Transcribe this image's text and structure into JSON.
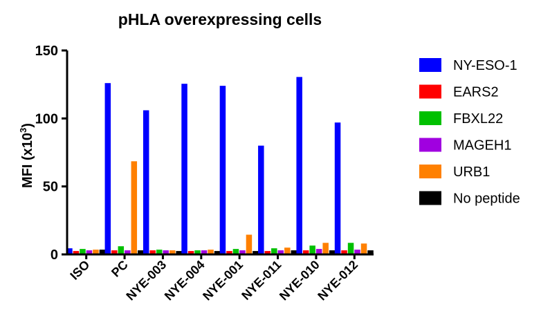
{
  "chart_data": {
    "type": "bar",
    "title": "pHLA overexpressing cells",
    "ylabel": "MFI (x10",
    "ylabel_sup": "3",
    "ylabel_close": ")",
    "xlabel": "",
    "ylim": [
      0,
      150
    ],
    "yticks": [
      0,
      50,
      100,
      150
    ],
    "categories": [
      "ISO",
      "PC",
      "NYE-003",
      "NYE-004",
      "NYE-001",
      "NYE-011",
      "NYE-010",
      "NYE-012"
    ],
    "series": [
      {
        "name": "NY-ESO-1",
        "color": "#0000ff",
        "values": [
          4.5,
          126,
          106,
          125.5,
          124,
          80,
          130.5,
          97
        ]
      },
      {
        "name": "EARS2",
        "color": "#ff0000",
        "values": [
          2.5,
          3,
          3,
          2.5,
          2.5,
          2.5,
          3,
          3
        ]
      },
      {
        "name": "FBXL22",
        "color": "#00c000",
        "values": [
          4,
          6,
          3.5,
          3,
          4,
          4.5,
          6.5,
          8.5
        ]
      },
      {
        "name": "MAGEH1",
        "color": "#a000e0",
        "values": [
          3,
          3,
          3,
          3,
          3,
          3,
          4,
          3.5
        ]
      },
      {
        "name": "URB1",
        "color": "#ff8000",
        "values": [
          3.5,
          68.5,
          3,
          3.5,
          14.5,
          5,
          8.5,
          8
        ]
      },
      {
        "name": "No peptide",
        "color": "#000000",
        "values": [
          3.5,
          3,
          2.5,
          2.5,
          2.5,
          3,
          3,
          3
        ]
      }
    ],
    "legend_position": "right",
    "grid": false
  }
}
